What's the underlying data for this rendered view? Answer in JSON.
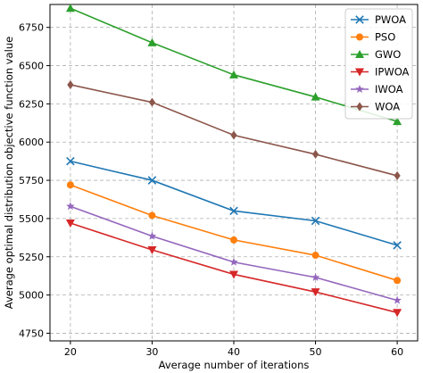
{
  "chart_data": {
    "type": "line",
    "xlabel": "Average number of iterations",
    "ylabel": "Average optimal distribution objective function value",
    "x": [
      20,
      30,
      40,
      50,
      60
    ],
    "xticks": [
      20,
      30,
      40,
      50,
      60
    ],
    "yticks": [
      4750,
      5000,
      5250,
      5500,
      5750,
      6000,
      6250,
      6500,
      6750
    ],
    "xlim": [
      17.5,
      62.5
    ],
    "ylim": [
      4700,
      6900
    ],
    "grid": true,
    "grid_style": "dashed",
    "legend_position": "top-right",
    "series": [
      {
        "name": "PWOA",
        "color": "#1f77b4",
        "marker": "x",
        "values": [
          5875,
          5750,
          5550,
          5485,
          5325
        ]
      },
      {
        "name": "PSO",
        "color": "#ff7f0e",
        "marker": "circle",
        "values": [
          5720,
          5520,
          5360,
          5260,
          5095
        ]
      },
      {
        "name": "GWO",
        "color": "#2ca02c",
        "marker": "triangle-up",
        "values": [
          6875,
          6650,
          6440,
          6295,
          6135
        ]
      },
      {
        "name": "IPWOA",
        "color": "#d62728",
        "marker": "triangle-down",
        "values": [
          5470,
          5295,
          5135,
          5020,
          4885
        ]
      },
      {
        "name": "IWOA",
        "color": "#9467bd",
        "marker": "star",
        "values": [
          5580,
          5385,
          5215,
          5115,
          4965
        ]
      },
      {
        "name": "WOA",
        "color": "#8c564b",
        "marker": "diamond",
        "values": [
          6375,
          6260,
          6045,
          5920,
          5780
        ]
      }
    ]
  }
}
